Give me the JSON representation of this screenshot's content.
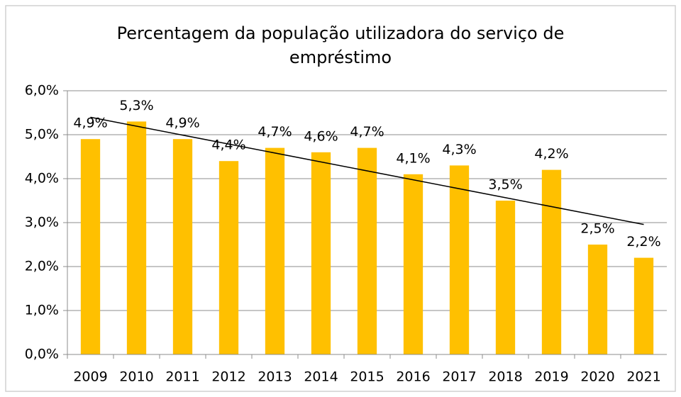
{
  "chart_data": {
    "type": "bar",
    "title": "Percentagem da população utilizadora do serviço de empréstimo",
    "categories": [
      "2009",
      "2010",
      "2011",
      "2012",
      "2013",
      "2014",
      "2015",
      "2016",
      "2017",
      "2018",
      "2019",
      "2020",
      "2021"
    ],
    "values": [
      4.9,
      5.3,
      4.9,
      4.4,
      4.7,
      4.6,
      4.7,
      4.1,
      4.3,
      3.5,
      4.2,
      2.5,
      2.2
    ],
    "value_labels": [
      "4,9%",
      "5,3%",
      "4,9%",
      "4,4%",
      "4,7%",
      "4,6%",
      "4,7%",
      "4,1%",
      "4,3%",
      "3,5%",
      "4,2%",
      "2,5%",
      "2,2%"
    ],
    "color": "#ffc000",
    "trendline": "linear",
    "ylim": [
      0,
      6
    ],
    "yticks": [
      {
        "value": 0,
        "label": "0,0%"
      },
      {
        "value": 1,
        "label": "1,0%"
      },
      {
        "value": 2,
        "label": "2,0%"
      },
      {
        "value": 3,
        "label": "3,0%"
      },
      {
        "value": 4,
        "label": "4,0%"
      },
      {
        "value": 5,
        "label": "5,0%"
      },
      {
        "value": 6,
        "label": "6,0%"
      }
    ],
    "grid": true
  }
}
